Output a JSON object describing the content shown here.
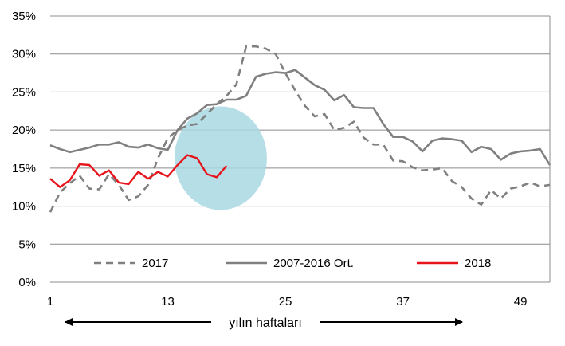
{
  "chart_data": {
    "type": "line",
    "title": "",
    "xlabel": "yılın haftaları",
    "ylabel": "",
    "x_ticks": [
      "1",
      "13",
      "25",
      "37",
      "49"
    ],
    "y_ticks": [
      "0%",
      "5%",
      "10%",
      "15%",
      "20%",
      "25%",
      "30%",
      "35%"
    ],
    "xlim": [
      1,
      52
    ],
    "ylim": [
      0,
      35
    ],
    "grid": "horizontal",
    "legend_position": "bottom-inside",
    "annotation": "circle highlighting weeks 13-23",
    "series": [
      {
        "name": "2017",
        "style": "dashed",
        "color": "#808080",
        "values": [
          9.2,
          11.8,
          13.0,
          14.0,
          12.3,
          12.2,
          14.2,
          12.8,
          10.8,
          11.3,
          12.8,
          16.3,
          18.9,
          20.0,
          20.6,
          20.8,
          22.1,
          23.4,
          24.5,
          26.0,
          31.0,
          31.0,
          30.7,
          30.0,
          27.5,
          25.2,
          23.2,
          21.8,
          22.1,
          20.0,
          20.3,
          21.1,
          19.0,
          18.1,
          18.1,
          16.0,
          15.9,
          15.1,
          14.7,
          14.8,
          15.0,
          13.3,
          12.5,
          11.0,
          10.2,
          12.1,
          11.0,
          12.3,
          12.6,
          13.1,
          12.6,
          12.8
        ]
      },
      {
        "name": "2007-2016 Ort.",
        "style": "solid",
        "color": "#808080",
        "values": [
          18.0,
          17.5,
          17.1,
          17.4,
          17.7,
          18.1,
          18.1,
          18.4,
          17.8,
          17.7,
          18.1,
          17.6,
          17.4,
          20.0,
          21.5,
          22.2,
          23.3,
          23.4,
          24.0,
          24.0,
          24.5,
          27.0,
          27.4,
          27.6,
          27.5,
          27.9,
          26.9,
          25.9,
          25.3,
          23.9,
          24.6,
          23.0,
          22.9,
          22.9,
          20.8,
          19.1,
          19.1,
          18.5,
          17.2,
          18.6,
          18.9,
          18.8,
          18.6,
          17.1,
          17.8,
          17.5,
          16.1,
          16.9,
          17.2,
          17.3,
          17.5,
          15.4
        ]
      },
      {
        "name": "2018",
        "style": "solid",
        "color": "#e8141c",
        "values": [
          13.6,
          12.5,
          13.4,
          15.5,
          15.4,
          14.0,
          14.7,
          13.1,
          12.9,
          14.5,
          13.6,
          14.5,
          13.9,
          15.4,
          16.7,
          16.3,
          14.2,
          13.8,
          15.3
        ]
      }
    ]
  }
}
